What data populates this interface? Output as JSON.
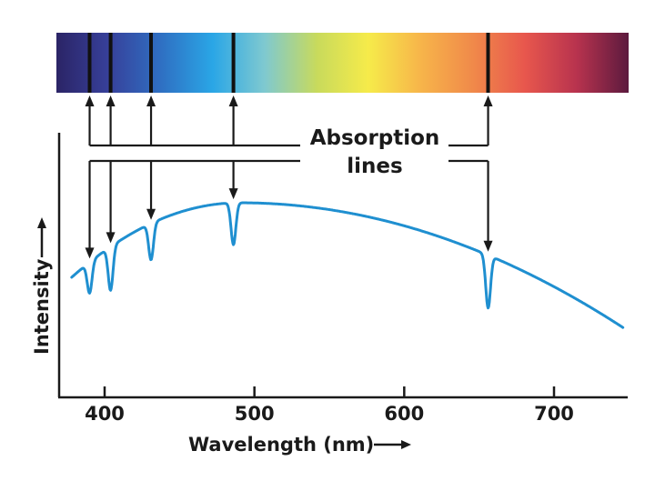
{
  "diagram": {
    "title_line1": "Absorption",
    "title_line2": "lines",
    "x_axis_label": "Wavelength (nm)",
    "y_axis_label": "Intensity",
    "curve_color": "#1f8fd0",
    "spectrum_gradient": [
      "#2b2466",
      "#37409a",
      "#2f6fc2",
      "#2aa6e6",
      "#7fc9d0",
      "#c8da5c",
      "#f6eb4a",
      "#f7b54a",
      "#f08a4a",
      "#e8574d",
      "#b8334e",
      "#5c1a3e"
    ],
    "x_range": [
      378,
      746
    ],
    "x_ticks": [
      {
        "value": 400,
        "label": "400"
      },
      {
        "value": 500,
        "label": "500"
      },
      {
        "value": 600,
        "label": "600"
      },
      {
        "value": 700,
        "label": "700"
      }
    ],
    "absorption_lines_nm": [
      390,
      404,
      431,
      486,
      656
    ]
  }
}
